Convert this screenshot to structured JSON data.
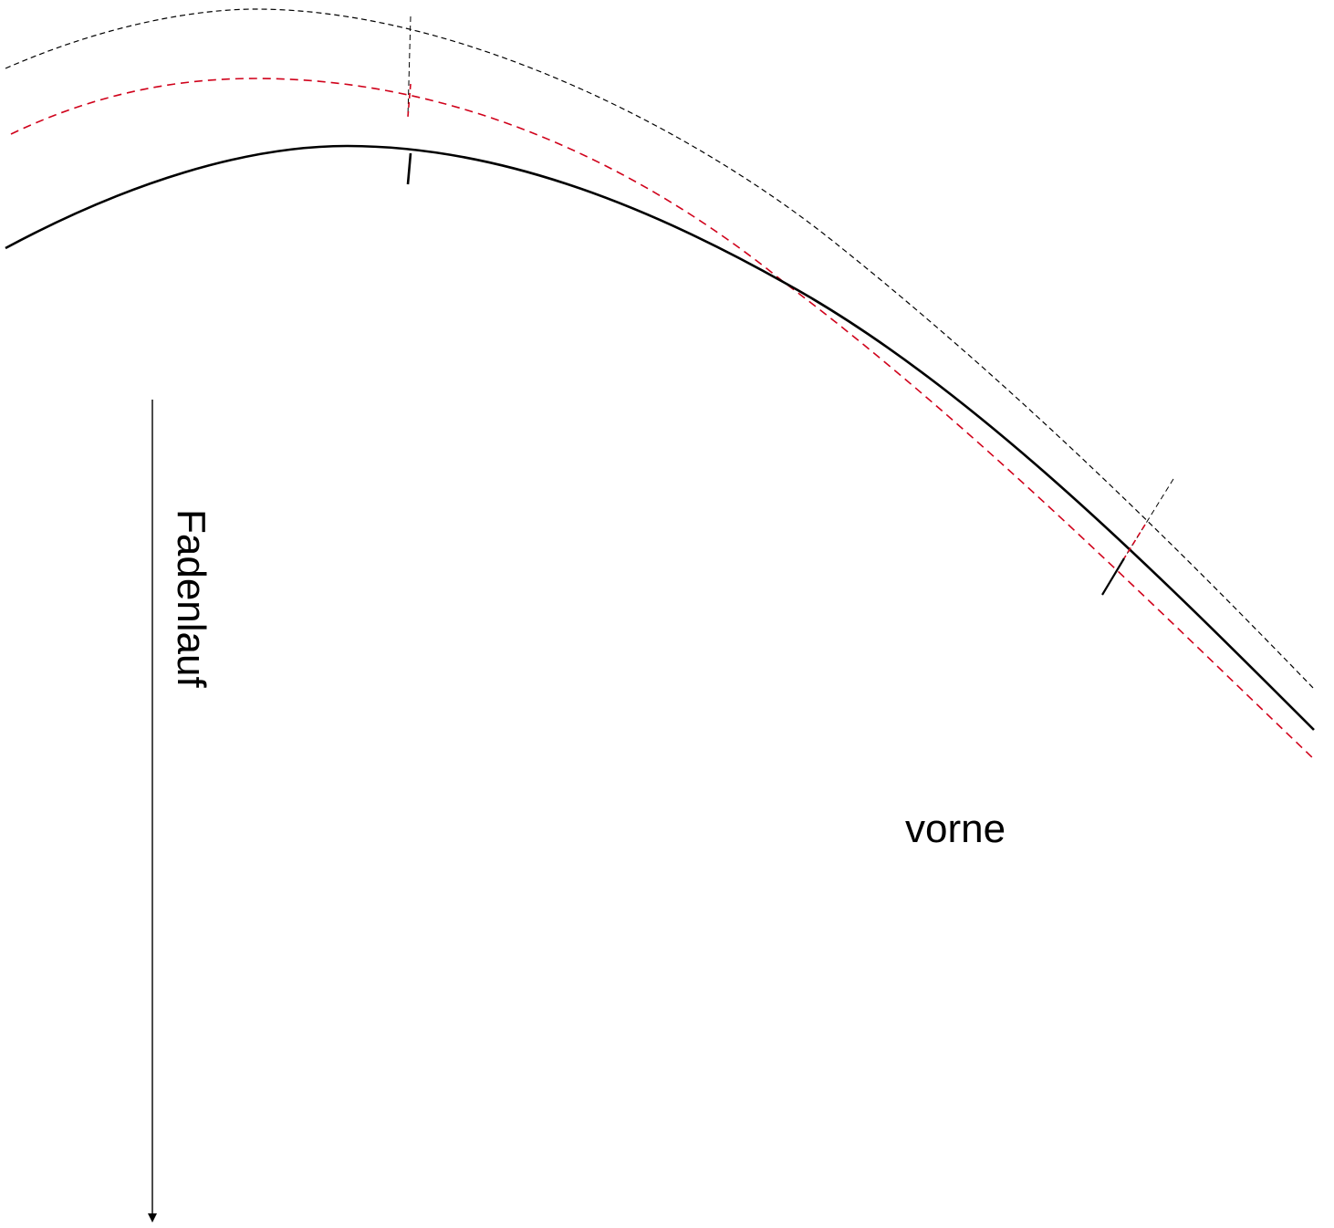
{
  "labels": {
    "grainline": "Fadenlauf",
    "front": "vorne"
  },
  "colors": {
    "seam_line": "#000000",
    "adjusted_line": "#d0021b",
    "cut_line": "#000000",
    "grainline": "#000000",
    "background": "#ffffff"
  }
}
